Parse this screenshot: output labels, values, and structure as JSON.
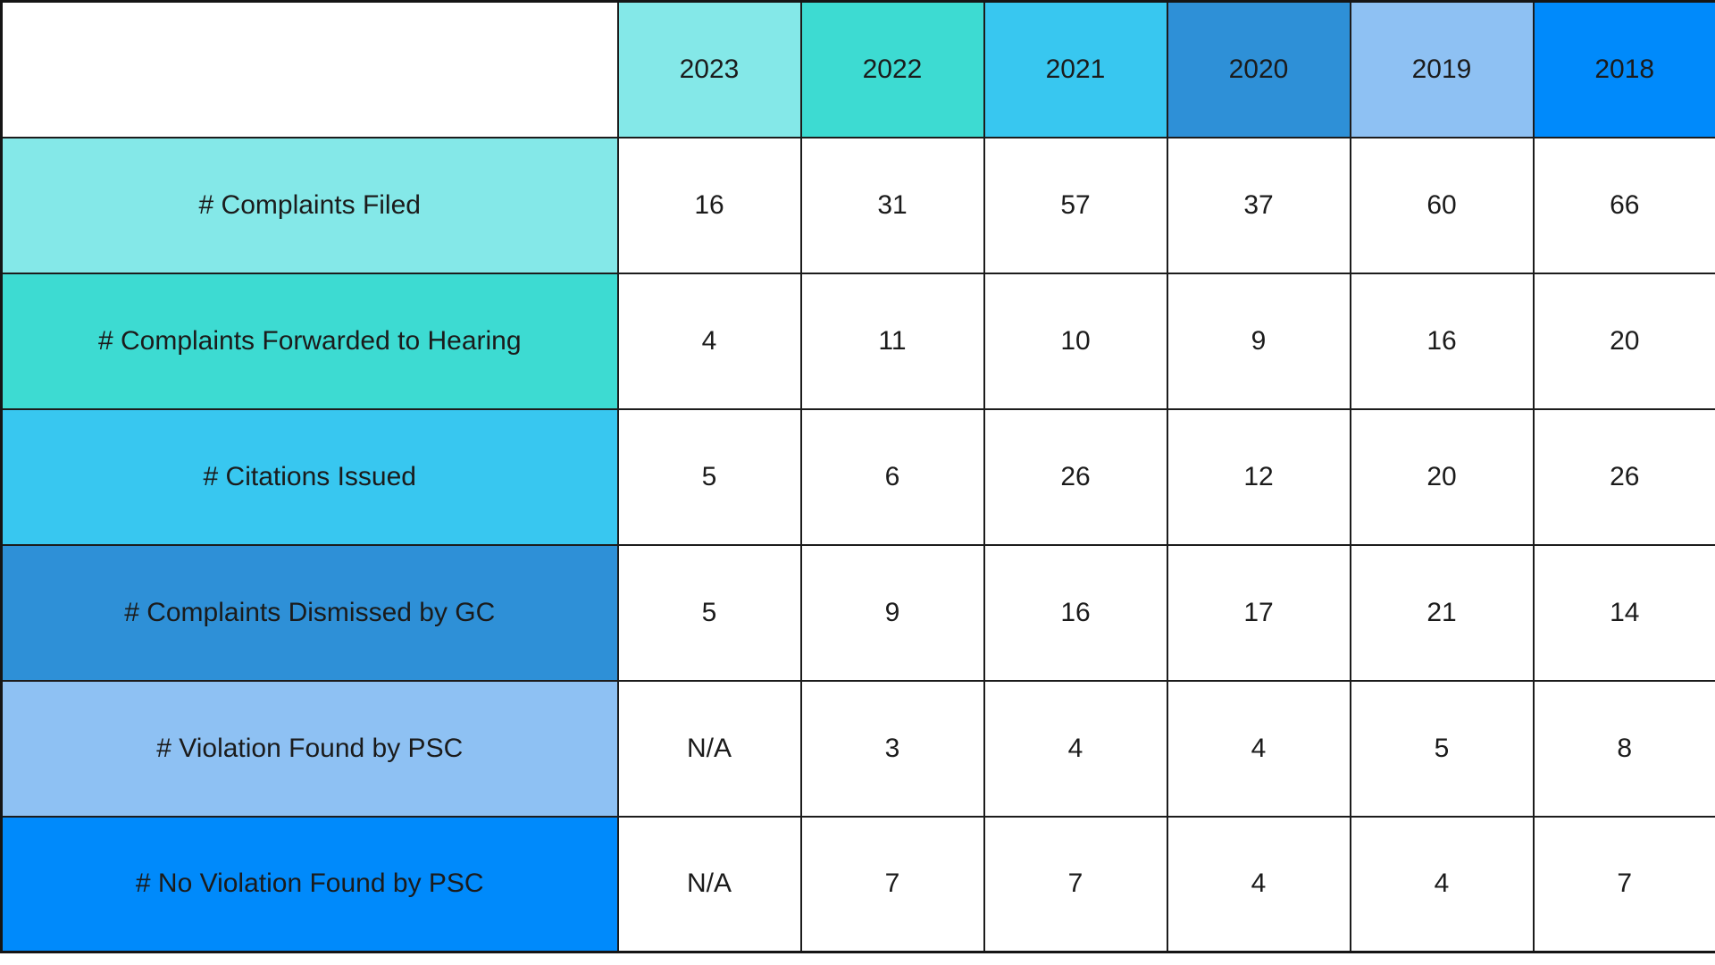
{
  "chart_data": {
    "type": "table",
    "columns": [
      "",
      "2023",
      "2022",
      "2021",
      "2020",
      "2019",
      "2018"
    ],
    "rows": [
      {
        "label": "# Complaints Filed",
        "values": [
          16,
          31,
          57,
          37,
          60,
          66
        ]
      },
      {
        "label": "# Complaints Forwarded to Hearing",
        "values": [
          4,
          11,
          10,
          9,
          16,
          20
        ]
      },
      {
        "label": "# Citations Issued",
        "values": [
          5,
          6,
          26,
          12,
          20,
          26
        ]
      },
      {
        "label": "# Complaints Dismissed by GC",
        "values": [
          5,
          9,
          16,
          17,
          21,
          14
        ]
      },
      {
        "label": "# Violation Found by PSC",
        "values": [
          "N/A",
          3,
          4,
          4,
          5,
          8
        ]
      },
      {
        "label": "# No Violation Found by PSC",
        "values": [
          "N/A",
          7,
          7,
          4,
          4,
          7
        ]
      }
    ],
    "column_header_colors": [
      "#84E8E8",
      "#3DDBD2",
      "#38C7F0",
      "#2E90D7",
      "#8EC1F3",
      "#008AFB"
    ],
    "row_label_colors": [
      "#84E8E8",
      "#3DDBD2",
      "#38C7F0",
      "#2E90D7",
      "#8EC1F3",
      "#008AFB"
    ],
    "layout": {
      "grid": "on",
      "border_color": "#1c1c1c",
      "text_color": "#1b1b1b",
      "header_row_position": "top",
      "label_column_position": "left"
    }
  }
}
